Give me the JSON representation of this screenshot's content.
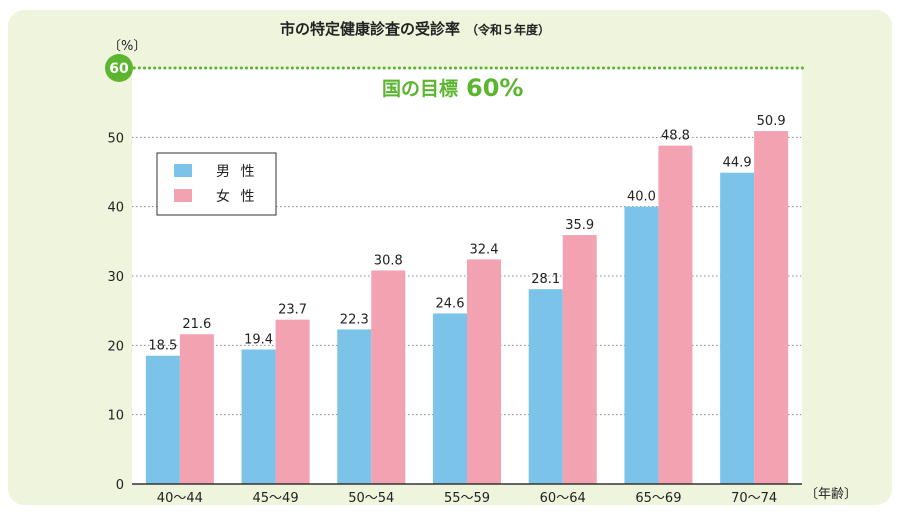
{
  "colors": {
    "male": "#7cc3ea",
    "female": "#f2a2b1",
    "accent": "#5bb52e",
    "panel": "#eef5dc",
    "plot_bg": "#ffffff",
    "grid": "#888888",
    "text": "#222222"
  },
  "chart_data": {
    "type": "bar",
    "title": "市の特定健康診査の受診率",
    "subtitle": "（令和５年度）",
    "ylabel": "〔%〕",
    "xlabel": "〔年齢〕",
    "categories": [
      "40～44",
      "45～49",
      "50～54",
      "55～59",
      "60～64",
      "65～69",
      "70～74"
    ],
    "series": [
      {
        "name": "男 性",
        "values": [
          18.5,
          19.4,
          22.3,
          24.6,
          28.1,
          40.0,
          44.9
        ]
      },
      {
        "name": "女 性",
        "values": [
          21.6,
          23.7,
          30.8,
          32.4,
          35.9,
          48.8,
          50.9
        ]
      }
    ],
    "ylim": [
      0,
      60
    ],
    "yticks": [
      0,
      10,
      20,
      30,
      40,
      50
    ],
    "grid": true,
    "legend_position": "top-left",
    "target": {
      "value": 60,
      "badge": "60",
      "label": "国の目標",
      "label_value": "60%"
    }
  }
}
